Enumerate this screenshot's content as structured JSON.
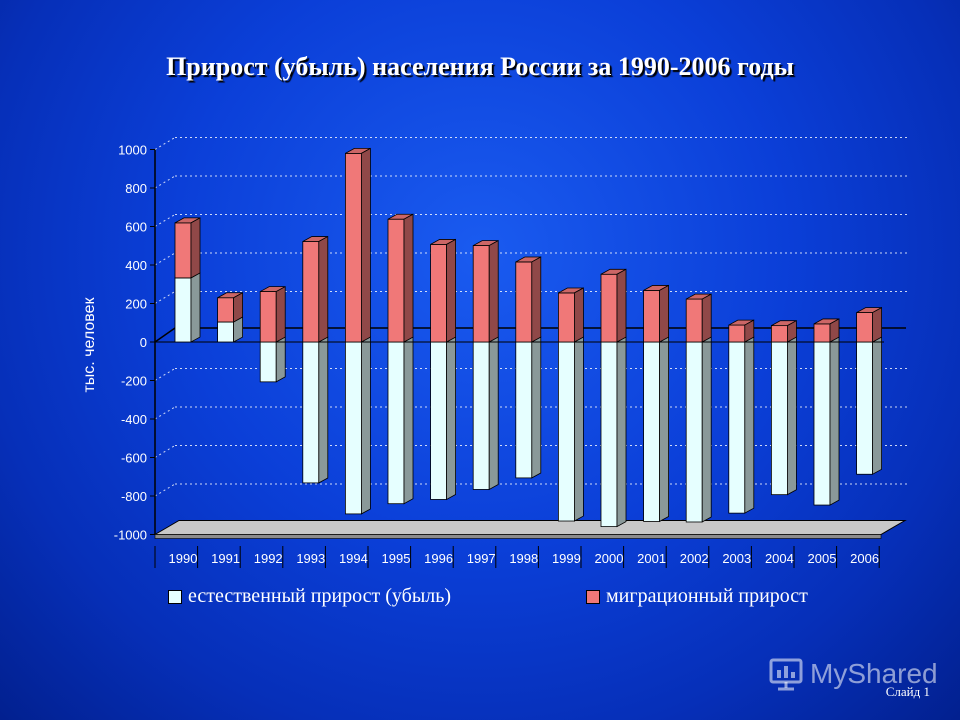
{
  "chart_data": {
    "type": "bar",
    "title": "Прирост (убыль) населения России за 1990-2006 годы",
    "ylabel": "тыс. человек",
    "ylim": [
      -1000,
      1000
    ],
    "yticks": [
      "1000",
      "800",
      "600",
      "400",
      "200",
      "0",
      "-200",
      "-400",
      "-600",
      "-800",
      "-1000"
    ],
    "categories": [
      "1990",
      "1991",
      "1992",
      "1993",
      "1994",
      "1995",
      "1996",
      "1997",
      "1998",
      "1999",
      "2000",
      "2001",
      "2002",
      "2003",
      "2004",
      "2005",
      "2006"
    ],
    "series": [
      {
        "name": "естественный прирост (убыль)",
        "color": "#e6ffff",
        "values": [
          333,
          104,
          -207,
          -732,
          -893,
          -840,
          -818,
          -766,
          -706,
          -930,
          -959,
          -932,
          -935,
          -889,
          -793,
          -847,
          -687
        ]
      },
      {
        "name": "миграционный прирост",
        "color": "#f07878",
        "values": [
          286,
          126,
          262,
          522,
          980,
          638,
          507,
          501,
          416,
          255,
          352,
          268,
          223,
          88,
          85,
          94,
          153
        ]
      }
    ],
    "legend_position": "bottom",
    "grid": true
  },
  "watermark": {
    "text": "MyShared"
  },
  "slide": {
    "label": "Слайд 1"
  }
}
